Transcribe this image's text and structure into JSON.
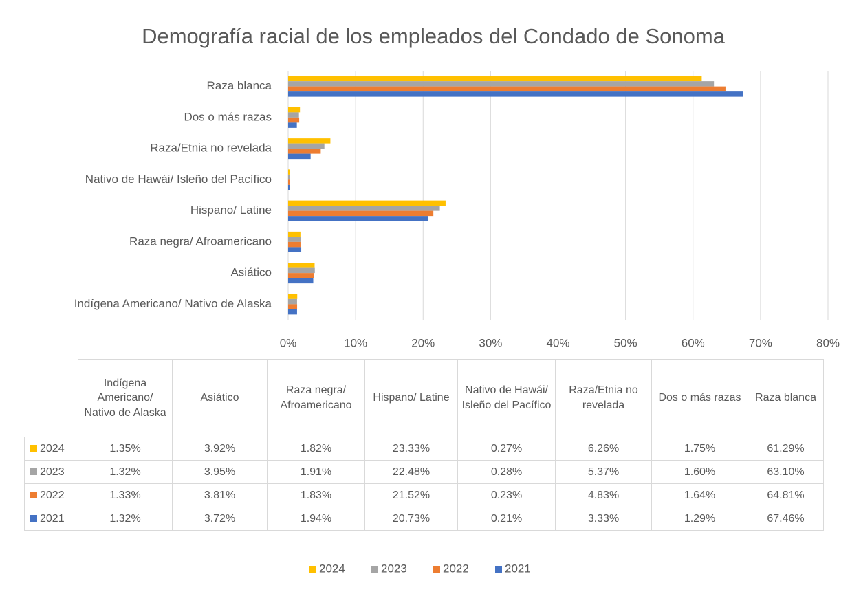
{
  "chart_data": {
    "type": "bar",
    "orientation": "horizontal",
    "title": "Demografía racial de los empleados del Condado de Sonoma",
    "categories": [
      "Indígena Americano/ Nativo de Alaska",
      "Asiático",
      "Raza negra/ Afroamericano",
      "Hispano/ Latine",
      "Nativo de Hawái/ Isleño del Pacífico",
      "Raza/Etnia no revelada",
      "Dos o más razas",
      "Raza blanca"
    ],
    "series": [
      {
        "name": "2024",
        "color": "#FFC000",
        "values": [
          1.35,
          3.92,
          1.82,
          23.33,
          0.27,
          6.26,
          1.75,
          61.29
        ],
        "value_labels": [
          "1.35%",
          "3.92%",
          "1.82%",
          "23.33%",
          "0.27%",
          "6.26%",
          "1.75%",
          "61.29%"
        ]
      },
      {
        "name": "2023",
        "color": "#A5A5A5",
        "values": [
          1.32,
          3.95,
          1.91,
          22.48,
          0.28,
          5.37,
          1.6,
          63.1
        ],
        "value_labels": [
          "1.32%",
          "3.95%",
          "1.91%",
          "22.48%",
          "0.28%",
          "5.37%",
          "1.60%",
          "63.10%"
        ]
      },
      {
        "name": "2022",
        "color": "#ED7D31",
        "values": [
          1.33,
          3.81,
          1.83,
          21.52,
          0.23,
          4.83,
          1.64,
          64.81
        ],
        "value_labels": [
          "1.33%",
          "3.81%",
          "1.83%",
          "21.52%",
          "0.23%",
          "4.83%",
          "1.64%",
          "64.81%"
        ]
      },
      {
        "name": "2021",
        "color": "#4472C4",
        "values": [
          1.32,
          3.72,
          1.94,
          20.73,
          0.21,
          3.33,
          1.29,
          67.46
        ],
        "value_labels": [
          "1.32%",
          "3.72%",
          "1.94%",
          "20.73%",
          "0.21%",
          "3.33%",
          "1.29%",
          "67.46%"
        ]
      }
    ],
    "xlim": [
      0,
      80
    ],
    "xticks": [
      {
        "value": 0,
        "label": "0%"
      },
      {
        "value": 10,
        "label": "10%"
      },
      {
        "value": 20,
        "label": "20%"
      },
      {
        "value": 30,
        "label": "30%"
      },
      {
        "value": 40,
        "label": "40%"
      },
      {
        "value": 50,
        "label": "50%"
      },
      {
        "value": 60,
        "label": "60%"
      },
      {
        "value": 70,
        "label": "70%"
      },
      {
        "value": 80,
        "label": "80%"
      }
    ],
    "grid": true,
    "legend": "bottom",
    "data_table": true
  }
}
